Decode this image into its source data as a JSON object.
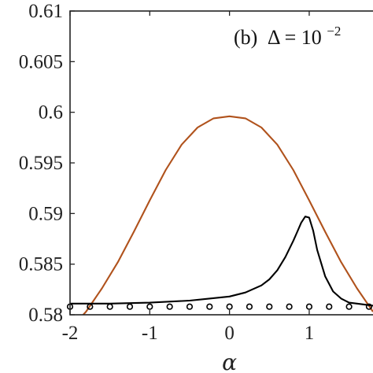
{
  "chart_data": {
    "type": "line",
    "annotation": {
      "panel": "(b)",
      "symbol": "Δ",
      "equals": " = ",
      "base": "10",
      "exponent": "−2"
    },
    "xlabel": "α",
    "ylabel": "",
    "xlim": [
      -2,
      1.8
    ],
    "ylim": [
      0.58,
      0.61
    ],
    "xticks": [
      -2,
      -1,
      0,
      1
    ],
    "xtick_labels": [
      "-2",
      "-1",
      "0",
      "1"
    ],
    "yticks": [
      0.58,
      0.585,
      0.59,
      0.595,
      0.6,
      0.605,
      0.61
    ],
    "ytick_labels": [
      "0.58",
      "0.585",
      "0.59",
      "0.595",
      "0.6",
      "0.605",
      "0.61"
    ],
    "grid": false,
    "series": [
      {
        "style": "line",
        "color": "#b0521c",
        "x": [
          -2.0,
          -1.8,
          -1.6,
          -1.4,
          -1.2,
          -1.0,
          -0.8,
          -0.6,
          -0.4,
          -0.2,
          0.0,
          0.2,
          0.4,
          0.6,
          0.8,
          1.0,
          1.2,
          1.4,
          1.6,
          1.8
        ],
        "y": [
          0.5786,
          0.5803,
          0.5826,
          0.5852,
          0.5882,
          0.5913,
          0.5943,
          0.5968,
          0.5985,
          0.5994,
          0.5996,
          0.5994,
          0.5985,
          0.5968,
          0.5943,
          0.5913,
          0.5882,
          0.5852,
          0.5826,
          0.5803
        ]
      },
      {
        "style": "line",
        "color": "#000000",
        "x": [
          -2.0,
          -1.5,
          -1.0,
          -0.5,
          0.0,
          0.2,
          0.4,
          0.5,
          0.6,
          0.7,
          0.8,
          0.85,
          0.9,
          0.95,
          1.0,
          1.05,
          1.1,
          1.2,
          1.3,
          1.4,
          1.5,
          1.6,
          1.8
        ],
        "y": [
          0.5811,
          0.5811,
          0.5812,
          0.5814,
          0.5818,
          0.5822,
          0.5829,
          0.5835,
          0.5844,
          0.5857,
          0.5873,
          0.5882,
          0.5891,
          0.5897,
          0.5896,
          0.5883,
          0.5864,
          0.5838,
          0.5823,
          0.5816,
          0.5812,
          0.5811,
          0.5809
        ]
      },
      {
        "style": "markers",
        "color": "#000000",
        "x": [
          -2.0,
          -1.75,
          -1.5,
          -1.25,
          -1.0,
          -0.75,
          -0.5,
          -0.25,
          0.0,
          0.25,
          0.5,
          0.75,
          1.0,
          1.25,
          1.5,
          1.75
        ],
        "y": [
          0.5808,
          0.5808,
          0.5808,
          0.5808,
          0.5808,
          0.5808,
          0.5808,
          0.5808,
          0.5808,
          0.5808,
          0.5808,
          0.5808,
          0.5808,
          0.5808,
          0.5808,
          0.5808
        ]
      }
    ]
  }
}
